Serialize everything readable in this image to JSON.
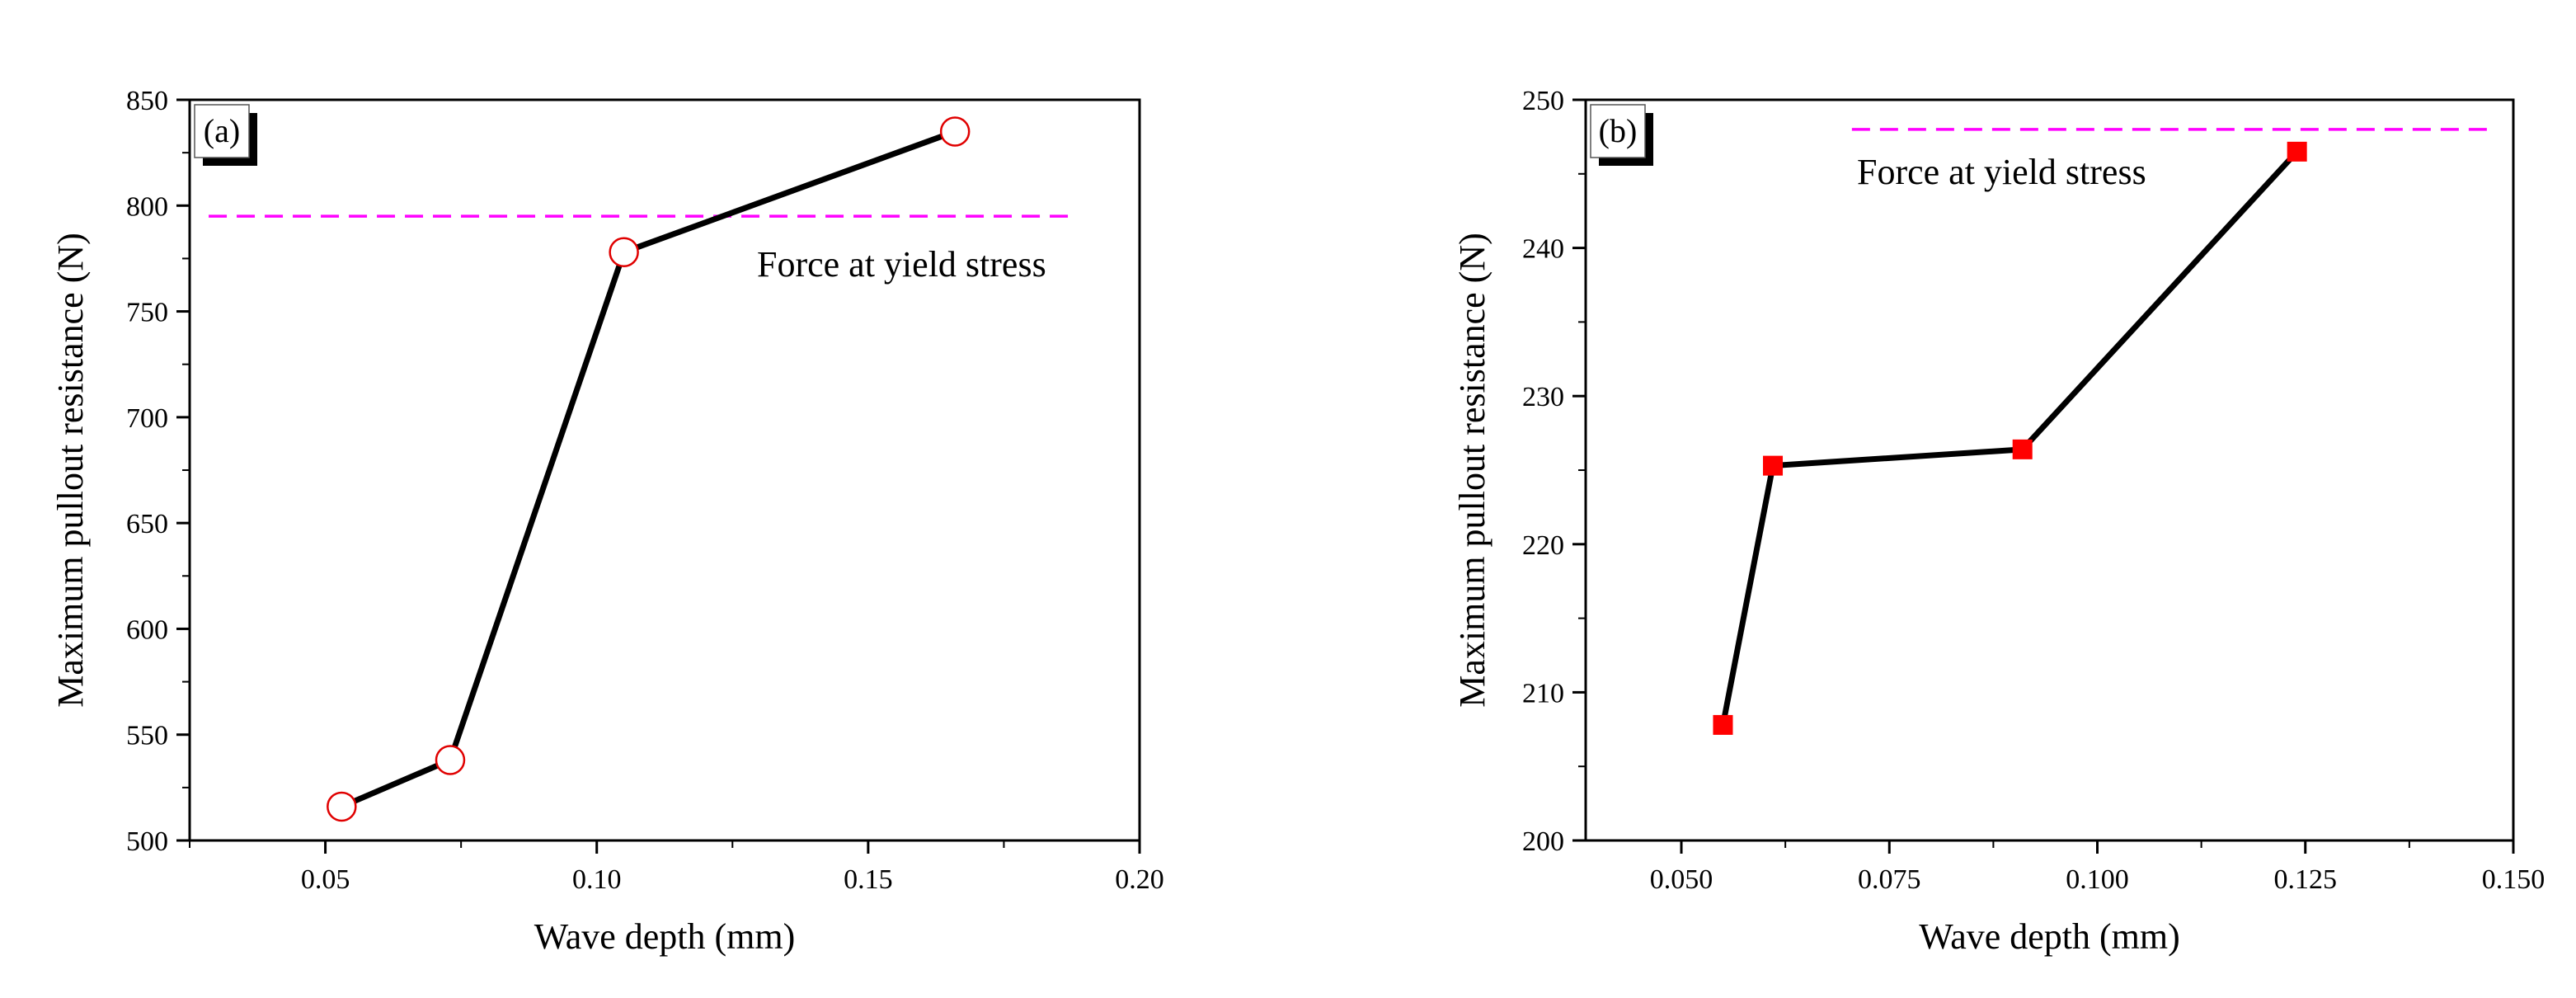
{
  "chart_data": [
    {
      "type": "line",
      "panel_label": "(a)",
      "xlabel": "Wave depth (mm)",
      "ylabel": "Maximum pullout resistance (N)",
      "xlim": [
        0.025,
        0.2
      ],
      "ylim": [
        500,
        850
      ],
      "xticks": [
        0.05,
        0.1,
        0.15,
        0.2
      ],
      "xtick_labels": [
        "0.05",
        "0.10",
        "0.15",
        "0.20"
      ],
      "yticks": [
        500,
        550,
        600,
        650,
        700,
        750,
        800,
        850
      ],
      "ytick_labels": [
        "500",
        "550",
        "600",
        "650",
        "700",
        "750",
        "800",
        "850"
      ],
      "series": [
        {
          "marker": "open-circle",
          "line_color": "#000000",
          "marker_color": "#e00000",
          "x": [
            0.053,
            0.073,
            0.105,
            0.166
          ],
          "y": [
            516,
            538,
            778,
            835
          ]
        }
      ],
      "reference_line": {
        "y": 795,
        "xrange": [
          0.0285,
          0.187
        ],
        "color": "#ff00ff",
        "style": "dashed"
      },
      "annotation": "Force at yield stress",
      "grid": false
    },
    {
      "type": "line",
      "panel_label": "(b)",
      "xlabel": "Wave depth (mm)",
      "ylabel": "Maximum pullout resistance (N)",
      "xlim": [
        0.0385,
        0.15
      ],
      "ylim": [
        200,
        250
      ],
      "xticks": [
        0.05,
        0.075,
        0.1,
        0.125,
        0.15
      ],
      "xtick_labels": [
        "0.050",
        "0.075",
        "0.100",
        "0.125",
        "0.150"
      ],
      "yticks": [
        200,
        210,
        220,
        230,
        240,
        250
      ],
      "ytick_labels": [
        "200",
        "210",
        "220",
        "230",
        "240",
        "250"
      ],
      "series": [
        {
          "marker": "filled-square",
          "line_color": "#000000",
          "marker_color": "#ff0000",
          "x": [
            0.055,
            0.061,
            0.091,
            0.124
          ],
          "y": [
            207.8,
            225.3,
            226.4,
            246.5
          ]
        }
      ],
      "reference_line": {
        "y": 248,
        "xrange": [
          0.0705,
          0.147
        ],
        "color": "#ff00ff",
        "style": "dashed"
      },
      "annotation": "Force at yield stress",
      "grid": false
    }
  ]
}
